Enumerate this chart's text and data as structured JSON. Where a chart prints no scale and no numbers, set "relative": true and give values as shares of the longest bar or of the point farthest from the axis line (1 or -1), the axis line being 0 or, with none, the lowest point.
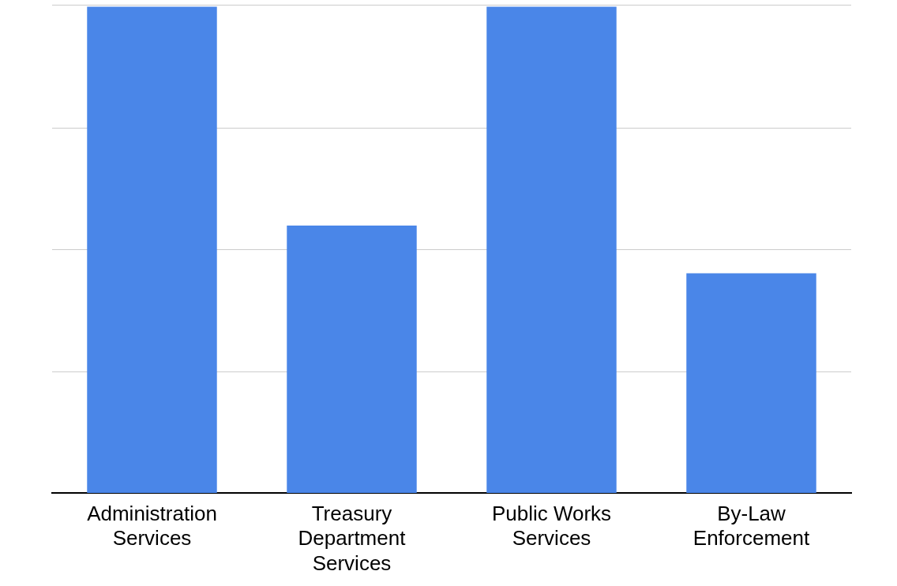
{
  "chart_data": {
    "type": "bar",
    "relative": true,
    "categories": [
      "Administration Services",
      "Treasury Department Services",
      "Public Works Services",
      "By-Law Enforcement"
    ],
    "values": [
      1,
      0.55,
      1,
      0.452
    ],
    "color": "#4a86e8",
    "grid": "y",
    "legend": false
  }
}
